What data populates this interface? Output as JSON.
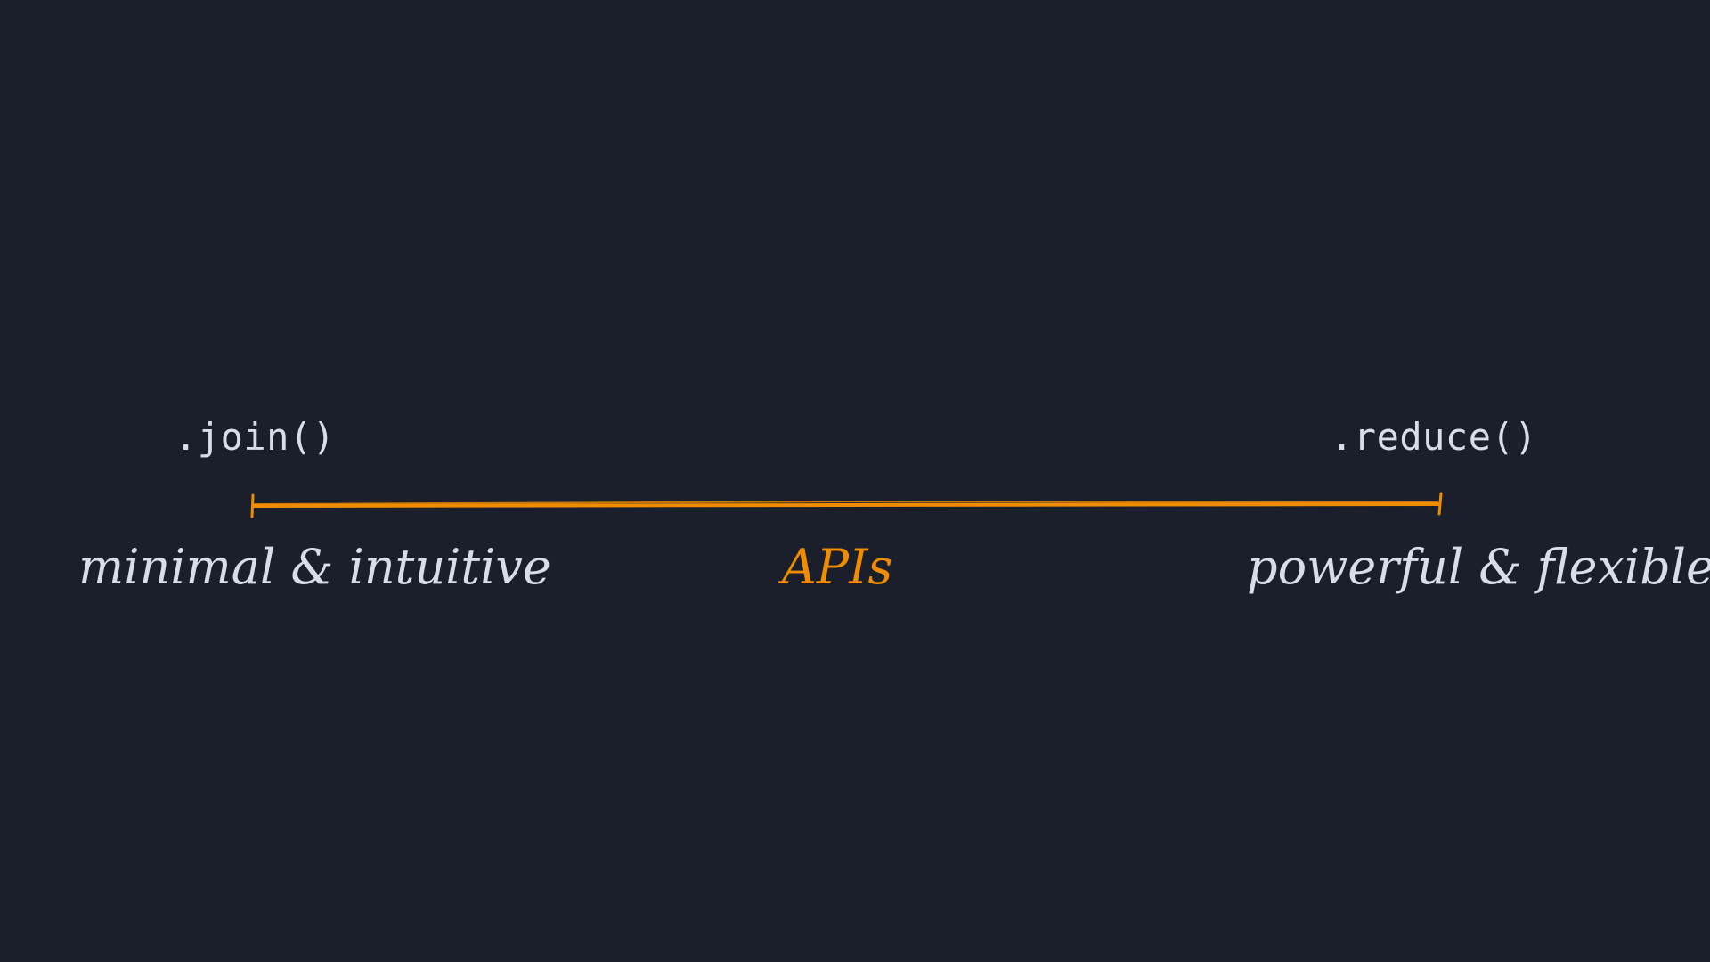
{
  "diagram": {
    "left_code": ".join()",
    "right_code": ".reduce()",
    "left_description": "minimal & intuitive",
    "center_label": "APIs",
    "right_description": "powerful & flexible"
  },
  "colors": {
    "background": "#1b1f2b",
    "text": "#d9dde5",
    "accent": "#f08c00"
  }
}
